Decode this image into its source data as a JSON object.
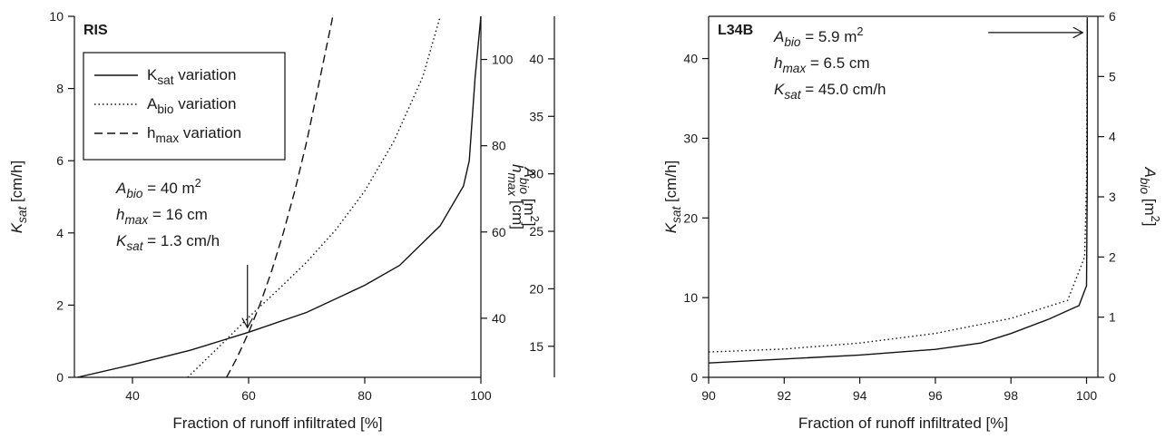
{
  "chart_data": [
    {
      "type": "line",
      "panel": "RIS",
      "title": "RIS",
      "xlabel": "Fraction of runoff infiltrated [%]",
      "xlim": [
        30,
        100
      ],
      "xticks": [
        40,
        60,
        80,
        100
      ],
      "axes": {
        "ksat": {
          "label_main": "K",
          "label_sub": "sat",
          "label_unit": " [cm/h]",
          "lim": [
            0,
            10
          ],
          "ticks": [
            0,
            2,
            4,
            6,
            8,
            10
          ]
        },
        "abio": {
          "label_main": "A",
          "label_sub": "bio",
          "label_unit": " [m",
          "label_sup": "2",
          "label_close": "]",
          "lim": [
            26.3,
            110
          ],
          "ticks": [
            40,
            60,
            80,
            100
          ]
        },
        "hmax": {
          "label_main": "h",
          "label_sub": "max",
          "label_unit": " [cm]",
          "lim": [
            12.3,
            43.7
          ],
          "ticks": [
            15,
            20,
            25,
            30,
            35,
            40
          ]
        }
      },
      "legend": {
        "position": "top-left",
        "entries": [
          {
            "main": "K",
            "sub": "sat",
            "rest": " variation",
            "dash": "solid"
          },
          {
            "main": "A",
            "sub": "bio",
            "rest": " variation",
            "dash": "dotted"
          },
          {
            "main": "h",
            "sub": "max",
            "rest": " variation",
            "dash": "dashed"
          }
        ]
      },
      "annotation": {
        "lines": [
          {
            "main": "A",
            "sub": "bio",
            "rest": " = 40 m",
            "sup": "2"
          },
          {
            "main": "h",
            "sub": "max",
            "rest": " = 16 cm",
            "sup": ""
          },
          {
            "main": "K",
            "sub": "sat",
            "rest": " = 1.3 cm/h",
            "sup": ""
          }
        ],
        "arrow_to": [
          59.8,
          1.3
        ]
      },
      "series": [
        {
          "axis": "ksat",
          "dash": "solid",
          "x": [
            30.5,
            40,
            50,
            60,
            70,
            80,
            86,
            93,
            97,
            98,
            99,
            100
          ],
          "y": [
            0,
            0.35,
            0.75,
            1.25,
            1.8,
            2.55,
            3.1,
            4.2,
            5.3,
            6.0,
            8.3,
            10.0
          ]
        },
        {
          "axis": "abio",
          "dash": "dotted",
          "x": [
            49.5,
            55,
            60,
            65,
            70,
            75,
            80,
            85,
            90,
            93
          ],
          "y": [
            26.3,
            33.5,
            40.2,
            46.5,
            53.0,
            60.5,
            69.5,
            81.0,
            96.0,
            110.0
          ]
        },
        {
          "axis": "hmax",
          "dash": "dashed",
          "x": [
            56.2,
            58,
            60,
            62,
            64,
            66,
            68,
            70,
            72,
            74.5
          ],
          "y": [
            12.3,
            14.0,
            16.2,
            18.7,
            21.6,
            24.9,
            28.6,
            32.8,
            37.6,
            43.7
          ]
        }
      ]
    },
    {
      "type": "line",
      "panel": "L34B",
      "title": "L34B",
      "xlabel": "Fraction of runoff infiltrated [%]",
      "xlim": [
        90,
        100.3
      ],
      "xticks": [
        90,
        92,
        94,
        96,
        98,
        100
      ],
      "axes": {
        "ksat": {
          "label_main": "K",
          "label_sub": "sat",
          "label_unit": " [cm/h]",
          "lim": [
            0,
            45.3
          ],
          "ticks": [
            0,
            10,
            20,
            30,
            40
          ]
        },
        "abio": {
          "label_main": "A",
          "label_sub": "bio",
          "label_unit": " [m",
          "label_sup": "2",
          "label_close": "]",
          "lim": [
            0,
            6
          ],
          "ticks": [
            0,
            1,
            2,
            3,
            4,
            5,
            6
          ]
        }
      },
      "annotation": {
        "lines": [
          {
            "main": "A",
            "sub": "bio",
            "rest": " = 5.9 m",
            "sup": "2"
          },
          {
            "main": "h",
            "sub": "max",
            "rest": " = 6.5 cm",
            "sup": ""
          },
          {
            "main": "K",
            "sub": "sat",
            "rest": " = 45.0 cm/h",
            "sup": ""
          }
        ],
        "arrow_from": [
          97.4,
          5.73
        ],
        "arrow_to": [
          99.9,
          5.73
        ]
      },
      "series": [
        {
          "axis": "ksat",
          "dash": "solid",
          "x": [
            90,
            92,
            94,
            96,
            97.2,
            98,
            99,
            99.8,
            100,
            100.02,
            100.02
          ],
          "y": [
            1.8,
            2.3,
            2.8,
            3.5,
            4.3,
            5.5,
            7.3,
            9.0,
            11.5,
            25,
            45
          ]
        },
        {
          "axis": "abio",
          "dash": "dotted",
          "x": [
            90,
            92,
            94,
            96,
            98,
            99.5,
            99.95,
            100.0,
            100.02
          ],
          "y": [
            0.42,
            0.47,
            0.57,
            0.73,
            0.98,
            1.28,
            2.0,
            3.2,
            6.0
          ]
        }
      ]
    }
  ]
}
